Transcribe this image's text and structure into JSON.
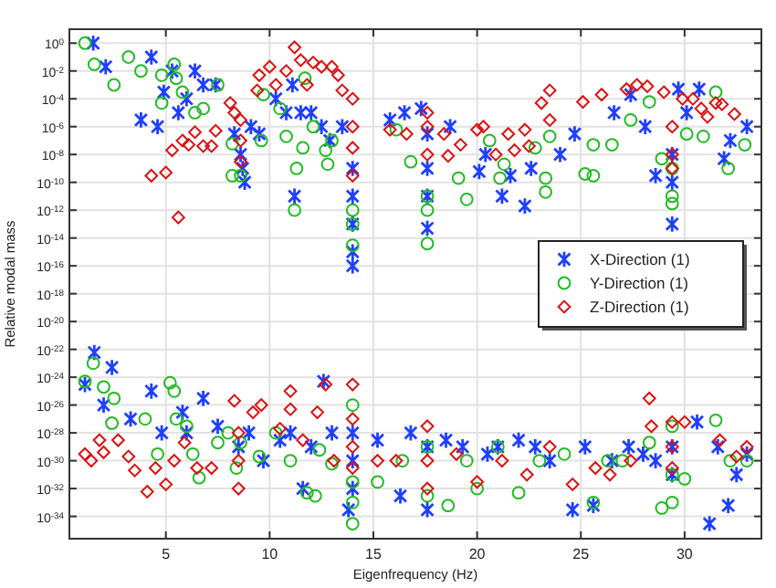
{
  "chart_data": {
    "type": "scatter",
    "xlabel": "Eigenfrequency (Hz)",
    "ylabel": "Relative modal mass",
    "log": "y",
    "grid": true,
    "legend": "right",
    "xlim": [
      0.35,
      33.7
    ],
    "xticks": [
      5,
      10,
      15,
      20,
      25,
      30
    ],
    "ylim": [
      2.5e-36,
      10
    ],
    "yticks": [
      {
        "value": 1,
        "label": "10$^{0}$"
      },
      {
        "value": 0.01,
        "label": "10$^{-2}$"
      },
      {
        "value": 0.0001,
        "label": "10$^{-4}$"
      },
      {
        "value": 1e-06,
        "label": "10$^{-6}$"
      },
      {
        "value": 1e-08,
        "label": "10$^{-8}$"
      },
      {
        "value": 1e-10,
        "label": "10$^{-10}$"
      },
      {
        "value": 1e-12,
        "label": "10$^{-12}$"
      },
      {
        "value": 1e-14,
        "label": "10$^{-14}$"
      },
      {
        "value": 1e-16,
        "label": "10$^{-16}$"
      },
      {
        "value": 1e-18,
        "label": "10$^{-18}$"
      },
      {
        "value": 1e-20,
        "label": "10$^{-20}$"
      },
      {
        "value": 1e-22,
        "label": "10$^{-22}$"
      },
      {
        "value": 1e-24,
        "label": "10$^{-24}$"
      },
      {
        "value": 1e-26,
        "label": "10$^{-26}$"
      },
      {
        "value": 1e-28,
        "label": "10$^{-28}$"
      },
      {
        "value": 1e-30,
        "label": "10$^{-30}$"
      },
      {
        "value": 1e-32,
        "label": "10$^{-32}$"
      },
      {
        "value": 1e-34,
        "label": "10$^{-34}$"
      }
    ],
    "series": [
      {
        "name": "X-Direction (1)",
        "color": "#1f3fff",
        "marker": "cross",
        "x": [
          1.5,
          2.1,
          3.8,
          4.6,
          4.3,
          4.9,
          5.3,
          5.6,
          6.0,
          6.4,
          6.8,
          7.4,
          8.3,
          8.6,
          8.7,
          8.8,
          9.1,
          9.5,
          10.3,
          10.8,
          11.1,
          11.2,
          11.5,
          12.0,
          12.5,
          12.9,
          13.5,
          14,
          14,
          14,
          14,
          14,
          15.8,
          16.5,
          17.3,
          17.6,
          17.6,
          17.6,
          17.6,
          18.7,
          20.1,
          20.4,
          21.2,
          21.6,
          22.3,
          22.6,
          24.0,
          24.7,
          26.6,
          27.4,
          28.1,
          28.6,
          29.4,
          29.4,
          29.4,
          29.7,
          30.1,
          30.7,
          31.9,
          32.2,
          33.0,
          1.1,
          1.55,
          2.0,
          2.4,
          3.3,
          4.3,
          5.8,
          6.8,
          4.8,
          6.0,
          7.5,
          8.5,
          9.0,
          9.7,
          10.5,
          11.0,
          11.6,
          12.0,
          12.6,
          13.0,
          14,
          14,
          14,
          13.8,
          15.2,
          16.3,
          16.8,
          17.6,
          17.6,
          18.5,
          19.3,
          20.5,
          21.0,
          22.0,
          22.8,
          23.5,
          24.6,
          25.2,
          25.6,
          26.5,
          27.3,
          28.0,
          28.6,
          29.4,
          29.4,
          30.6,
          31.2,
          31.6,
          32.1,
          32.5,
          33.0
        ],
        "values": [
          1,
          0.02,
          3e-06,
          1e-06,
          0.1,
          0.0003,
          0.01,
          1e-05,
          0.0001,
          0.01,
          0.001,
          0.001,
          3e-07,
          1e-08,
          1e-09,
          1e-10,
          1e-06,
          3e-07,
          0.0001,
          1e-05,
          0.001,
          1e-11,
          1e-05,
          1e-05,
          1e-06,
          1e-07,
          1e-06,
          1e-09,
          1e-11,
          1e-13,
          1e-15,
          1e-16,
          3e-06,
          1e-05,
          2e-05,
          3e-07,
          1e-09,
          1e-11,
          5e-14,
          1e-06,
          6e-10,
          1e-08,
          1e-11,
          3e-10,
          2e-12,
          1e-09,
          1e-08,
          3e-07,
          1e-05,
          0.0002,
          1e-06,
          3e-10,
          1e-13,
          1e-08,
          1e-10,
          0.0005,
          1e-05,
          0.0005,
          5e-09,
          1e-07,
          1e-06,
          3e-25,
          6e-23,
          1e-26,
          5e-24,
          1e-27,
          1e-25,
          3e-27,
          3e-26,
          1e-28,
          1e-28,
          3e-28,
          1e-29,
          1e-28,
          1e-30,
          3e-29,
          1e-28,
          1e-32,
          1e-29,
          5e-25,
          1e-28,
          1e-28,
          1e-30,
          1e-32,
          3e-34,
          3e-29,
          3e-33,
          1e-28,
          1e-29,
          3e-34,
          3e-29,
          1e-29,
          3e-30,
          1e-29,
          3e-29,
          1e-29,
          1e-30,
          3e-34,
          1e-29,
          6e-34,
          1e-30,
          1e-29,
          3e-30,
          1e-30,
          1e-29,
          1e-31,
          6e-28,
          3e-35,
          1e-29,
          6e-34,
          1e-31,
          3e-30
        ]
      },
      {
        "name": "Y-Direction (1)",
        "color": "#22bb22",
        "marker": "circle",
        "x": [
          1.1,
          1.55,
          2.5,
          3.2,
          3.8,
          4.8,
          5.4,
          5.5,
          4.8,
          5.8,
          6.4,
          6.8,
          7.5,
          8.2,
          8.2,
          8.6,
          9.6,
          9.7,
          10.5,
          10.8,
          11.3,
          11.2,
          11.6,
          11.7,
          12.1,
          12.7,
          12.8,
          13.0,
          14,
          14,
          14,
          16.1,
          16.8,
          17.6,
          17.6,
          17.6,
          19.1,
          19.5,
          20.6,
          21.1,
          21.3,
          22.8,
          23.3,
          23.3,
          23.5,
          25.2,
          25.6,
          25.6,
          26.5,
          27.4,
          28.3,
          28.9,
          29.4,
          29.4,
          29.4,
          30.1,
          30.9,
          31.5,
          32.1,
          32.9,
          1.1,
          1.5,
          2.0,
          2.5,
          2.4,
          4.0,
          4.6,
          5.2,
          5.4,
          5.5,
          6.0,
          6.3,
          6.6,
          7.5,
          8.0,
          8.4,
          8.6,
          9.5,
          10.3,
          11.0,
          11.8,
          12.2,
          12.4,
          13.0,
          14,
          14,
          14,
          14,
          15.2,
          16.4,
          17.6,
          17.6,
          18.6,
          19.5,
          20.0,
          21.0,
          22.0,
          23.0,
          24.2,
          25.6,
          26.3,
          27.0,
          28.3,
          28.9,
          29.4,
          29.4,
          29.4,
          30.0,
          31.5,
          32.2,
          33.0
        ],
        "values": [
          1,
          0.03,
          0.001,
          0.1,
          0.01,
          0.005,
          0.03,
          0.003,
          5e-05,
          0.0003,
          1e-05,
          2e-05,
          0.001,
          6e-08,
          3e-10,
          3e-10,
          1e-07,
          0.0002,
          2e-05,
          2e-07,
          1e-09,
          1e-12,
          3e-08,
          0.003,
          1e-06,
          2e-08,
          2e-09,
          1e-07,
          1e-12,
          1e-13,
          3e-15,
          6e-07,
          3e-09,
          1e-11,
          1e-12,
          4e-15,
          2e-10,
          6e-12,
          1e-07,
          2e-10,
          2e-09,
          3e-08,
          2e-10,
          2e-11,
          2e-07,
          4e-10,
          3e-10,
          5e-08,
          5e-08,
          3e-06,
          6e-05,
          5e-09,
          1e-09,
          1e-11,
          3e-12,
          3e-07,
          2e-07,
          0.0003,
          1e-09,
          5e-08,
          5e-25,
          1e-23,
          2e-25,
          3e-26,
          5e-28,
          1e-27,
          3e-30,
          4e-25,
          1e-25,
          1e-27,
          3e-28,
          3e-30,
          6e-32,
          2e-29,
          1e-28,
          3e-31,
          2e-29,
          2e-30,
          1e-28,
          1e-30,
          5e-33,
          3e-33,
          6e-30,
          6e-31,
          1e-26,
          3e-32,
          1e-33,
          3e-35,
          3e-32,
          1e-30,
          1e-29,
          3e-33,
          6e-34,
          1e-30,
          1e-32,
          1e-29,
          5e-33,
          1e-30,
          3e-30,
          1e-33,
          1e-30,
          1e-30,
          2e-29,
          4e-34,
          3e-28,
          1e-31,
          1e-33,
          5e-32,
          8e-28,
          1e-30,
          1e-30
        ]
      },
      {
        "name": "Z-Direction (1)",
        "color": "#dd1111",
        "marker": "diamond",
        "x": [
          4.3,
          5.0,
          5.3,
          5.6,
          5.8,
          6.1,
          6.4,
          6.8,
          7.2,
          7.4,
          8.1,
          8.3,
          8.6,
          8.6,
          8.6,
          9.4,
          9.5,
          10.0,
          10.3,
          10.8,
          11.2,
          11.5,
          11.8,
          12.1,
          12.5,
          13.0,
          13.3,
          13.5,
          14,
          14,
          14,
          14,
          15.8,
          16.6,
          17.6,
          17.6,
          17.6,
          18.4,
          18.6,
          19.2,
          20.0,
          20.3,
          20.9,
          21.5,
          21.8,
          22.3,
          22.5,
          23.1,
          23.5,
          23.5,
          25.1,
          26.0,
          27.2,
          27.7,
          28.2,
          29.0,
          29.4,
          29.4,
          29.4,
          29.9,
          30.4,
          30.8,
          31.1,
          31.5,
          31.8,
          32.4,
          1.1,
          1.4,
          1.8,
          2.0,
          2.7,
          3.2,
          3.5,
          4.1,
          4.5,
          5.0,
          5.4,
          5.9,
          6.5,
          7.2,
          8.3,
          8.5,
          8.5,
          8.5,
          9.2,
          9.6,
          10.5,
          11.0,
          11.0,
          11.6,
          12.3,
          12.7,
          13.1,
          14,
          14,
          14,
          14,
          15.2,
          16.1,
          17.6,
          17.6,
          17.6,
          19.0,
          20.0,
          21.2,
          22.4,
          23.5,
          24.6,
          25.7,
          26.4,
          27.4,
          28.3,
          28.4,
          29.4,
          29.4,
          29.4,
          30.0,
          31.7,
          32.5,
          33.0
        ],
        "values": [
          3e-10,
          5e-10,
          2e-08,
          3e-13,
          1e-07,
          5e-08,
          4e-07,
          4e-08,
          4e-08,
          5e-07,
          5e-05,
          1e-05,
          3e-06,
          1e-07,
          3e-09,
          0.0004,
          0.005,
          0.02,
          0.001,
          0.01,
          0.5,
          0.06,
          0.001,
          0.04,
          0.02,
          0.02,
          0.005,
          0.0004,
          0.0001,
          1e-06,
          3e-08,
          3e-10,
          6e-07,
          3e-07,
          1e-05,
          1e-06,
          1e-08,
          3e-07,
          8e-09,
          5e-08,
          6e-07,
          1e-06,
          1e-08,
          3e-07,
          2e-08,
          6e-07,
          4e-08,
          5e-05,
          0.0004,
          3e-06,
          6e-05,
          0.0002,
          0.0005,
          0.001,
          0.0008,
          0.0003,
          1e-06,
          1e-08,
          1e-09,
          0.0001,
          0.0001,
          2e-05,
          5e-06,
          5e-05,
          4e-05,
          8e-06,
          3e-30,
          1e-30,
          3e-29,
          4e-30,
          3e-29,
          2e-30,
          2e-31,
          6e-33,
          3e-31,
          2e-32,
          1e-30,
          2e-29,
          3e-31,
          3e-31,
          2e-26,
          1e-28,
          1e-30,
          1e-32,
          3e-27,
          1e-26,
          2e-28,
          1e-25,
          5e-27,
          3e-29,
          3e-27,
          3e-25,
          1e-30,
          3e-25,
          1e-27,
          1e-29,
          3e-31,
          1e-30,
          1e-30,
          3e-28,
          1e-30,
          1e-32,
          3e-30,
          3e-32,
          1e-30,
          1e-31,
          1e-29,
          2e-32,
          3e-31,
          1e-31,
          1e-30,
          3e-26,
          3e-28,
          6e-28,
          1e-29,
          3e-31,
          6e-28,
          3e-29,
          2e-30,
          1e-29
        ]
      }
    ]
  }
}
